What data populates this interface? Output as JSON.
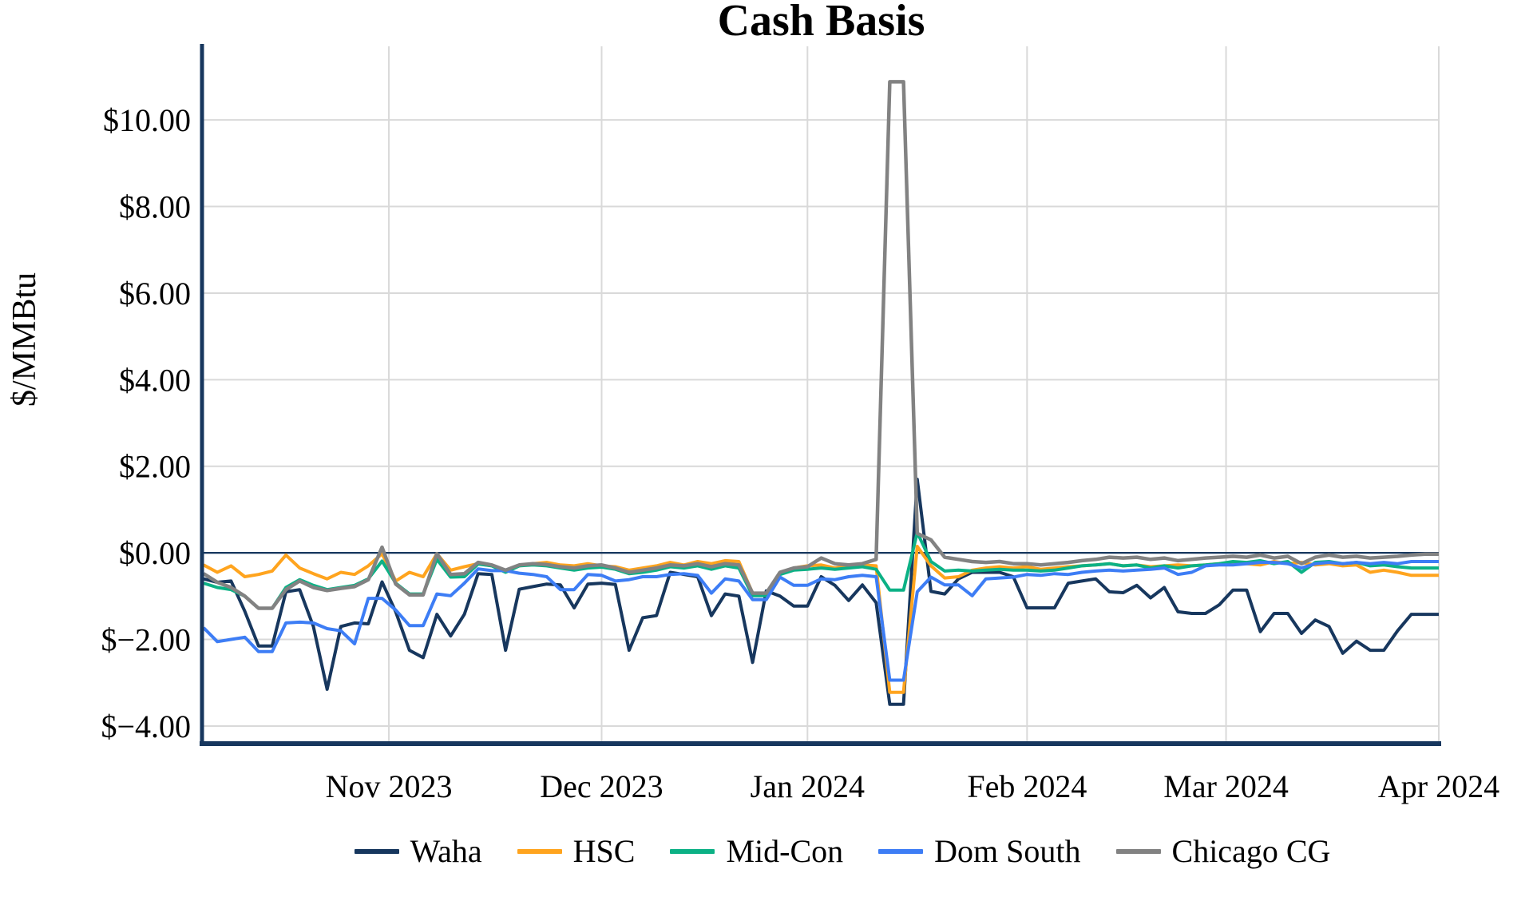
{
  "chart_data": {
    "type": "line",
    "title": "Cash Basis",
    "ylabel": "$/MMBtu",
    "grid": true,
    "legend_position": "bottom",
    "background_color": "#FFFFFF",
    "axis_color": "#17375E",
    "gridline_color": "#D9D9D9",
    "zero_line": {
      "value": 0,
      "color": "#17375E"
    },
    "x_axis": {
      "unit": "days since first point (approx. Oct 5, 2023)",
      "total_days": 180,
      "ticks": [
        {
          "label": "Nov 2023",
          "day": 27
        },
        {
          "label": "Dec 2023",
          "day": 58
        },
        {
          "label": "Jan 2024",
          "day": 88
        },
        {
          "label": "Feb 2024",
          "day": 120
        },
        {
          "label": "Mar 2024",
          "day": 149
        },
        {
          "label": "Apr 2024",
          "day": 180
        }
      ]
    },
    "y_axis": {
      "range": [
        -4.37,
        11.7
      ],
      "ticks": [
        {
          "label": "$10.00",
          "value": 10
        },
        {
          "label": "$8.00",
          "value": 8
        },
        {
          "label": "$6.00",
          "value": 6
        },
        {
          "label": "$4.00",
          "value": 4
        },
        {
          "label": "$2.00",
          "value": 2
        },
        {
          "label": "$0.00",
          "value": 0
        },
        {
          "label": "$−2.00",
          "value": -2
        },
        {
          "label": "$−4.00",
          "value": -4
        }
      ]
    },
    "sample_interval_days": 2,
    "series": [
      {
        "name": "Waha",
        "color": "#17375E",
        "values": [
          -0.6,
          -0.68,
          -0.65,
          -1.35,
          -2.15,
          -2.15,
          -0.9,
          -0.85,
          -1.7,
          -3.15,
          -1.7,
          -1.62,
          -1.64,
          -0.67,
          -1.36,
          -2.25,
          -2.42,
          -1.42,
          -1.92,
          -1.42,
          -0.48,
          -0.5,
          -2.25,
          -0.84,
          -0.78,
          -0.72,
          -0.74,
          -1.27,
          -0.72,
          -0.7,
          -0.73,
          -2.25,
          -1.5,
          -1.45,
          -0.45,
          -0.5,
          -0.55,
          -1.45,
          -0.95,
          -1.0,
          -2.53,
          -0.88,
          -1.0,
          -1.23,
          -1.23,
          -0.55,
          -0.75,
          -1.1,
          -0.74,
          -1.15,
          -3.5,
          -3.5,
          1.7,
          -0.89,
          -0.95,
          -0.6,
          -0.45,
          -0.45,
          -0.45,
          -0.55,
          -1.27,
          -1.27,
          -1.27,
          -0.7,
          -0.65,
          -0.6,
          -0.9,
          -0.92,
          -0.75,
          -1.04,
          -0.8,
          -1.36,
          -1.4,
          -1.4,
          -1.2,
          -0.86,
          -0.86,
          -1.82,
          -1.4,
          -1.4,
          -1.86,
          -1.55,
          -1.7,
          -2.32,
          -2.04,
          -2.25,
          -2.25,
          -1.8,
          -1.42,
          -1.42,
          -1.42
        ]
      },
      {
        "name": "HSC",
        "color": "#FFA41E",
        "values": [
          -0.28,
          -0.45,
          -0.3,
          -0.55,
          -0.5,
          -0.42,
          -0.05,
          -0.35,
          -0.48,
          -0.6,
          -0.45,
          -0.5,
          -0.3,
          -0.02,
          -0.65,
          -0.45,
          -0.55,
          -0.02,
          -0.4,
          -0.32,
          -0.25,
          -0.3,
          -0.42,
          -0.3,
          -0.25,
          -0.22,
          -0.28,
          -0.3,
          -0.25,
          -0.3,
          -0.32,
          -0.4,
          -0.35,
          -0.3,
          -0.22,
          -0.28,
          -0.2,
          -0.25,
          -0.18,
          -0.2,
          -0.93,
          -0.95,
          -0.45,
          -0.35,
          -0.3,
          -0.28,
          -0.35,
          -0.3,
          -0.28,
          -0.3,
          -3.22,
          -3.22,
          0.15,
          -0.3,
          -0.58,
          -0.55,
          -0.4,
          -0.35,
          -0.32,
          -0.35,
          -0.32,
          -0.38,
          -0.35,
          -0.32,
          -0.3,
          -0.28,
          -0.25,
          -0.3,
          -0.28,
          -0.32,
          -0.3,
          -0.28,
          -0.3,
          -0.28,
          -0.25,
          -0.22,
          -0.25,
          -0.28,
          -0.2,
          -0.25,
          -0.22,
          -0.28,
          -0.25,
          -0.3,
          -0.28,
          -0.45,
          -0.4,
          -0.45,
          -0.52,
          -0.52,
          -0.52
        ]
      },
      {
        "name": "Mid-Con",
        "color": "#0CB185",
        "values": [
          -0.7,
          -0.8,
          -0.85,
          -1.0,
          -1.28,
          -1.28,
          -0.8,
          -0.62,
          -0.75,
          -0.85,
          -0.8,
          -0.75,
          -0.6,
          -0.19,
          -0.7,
          -0.95,
          -0.95,
          -0.15,
          -0.56,
          -0.55,
          -0.26,
          -0.3,
          -0.45,
          -0.3,
          -0.28,
          -0.3,
          -0.35,
          -0.4,
          -0.35,
          -0.33,
          -0.38,
          -0.48,
          -0.45,
          -0.4,
          -0.32,
          -0.35,
          -0.3,
          -0.38,
          -0.3,
          -0.35,
          -0.99,
          -0.99,
          -0.5,
          -0.4,
          -0.38,
          -0.35,
          -0.38,
          -0.35,
          -0.32,
          -0.38,
          -0.86,
          -0.86,
          0.47,
          -0.2,
          -0.42,
          -0.4,
          -0.42,
          -0.4,
          -0.38,
          -0.4,
          -0.4,
          -0.42,
          -0.4,
          -0.35,
          -0.3,
          -0.28,
          -0.25,
          -0.3,
          -0.28,
          -0.35,
          -0.3,
          -0.35,
          -0.3,
          -0.28,
          -0.25,
          -0.2,
          -0.22,
          -0.18,
          -0.25,
          -0.2,
          -0.45,
          -0.22,
          -0.2,
          -0.25,
          -0.22,
          -0.3,
          -0.28,
          -0.32,
          -0.35,
          -0.35,
          -0.35
        ]
      },
      {
        "name": "Dom South",
        "color": "#3D7DF5",
        "values": [
          -1.73,
          -2.05,
          -2.0,
          -1.95,
          -2.28,
          -2.28,
          -1.62,
          -1.6,
          -1.62,
          -1.75,
          -1.8,
          -2.1,
          -1.05,
          -1.05,
          -1.32,
          -1.68,
          -1.68,
          -0.95,
          -0.99,
          -0.7,
          -0.37,
          -0.41,
          -0.41,
          -0.47,
          -0.5,
          -0.55,
          -0.85,
          -0.85,
          -0.5,
          -0.52,
          -0.65,
          -0.62,
          -0.55,
          -0.55,
          -0.5,
          -0.48,
          -0.52,
          -0.93,
          -0.6,
          -0.65,
          -1.08,
          -1.08,
          -0.56,
          -0.75,
          -0.75,
          -0.6,
          -0.62,
          -0.55,
          -0.52,
          -0.55,
          -2.94,
          -2.94,
          -0.9,
          -0.56,
          -0.74,
          -0.74,
          -0.99,
          -0.6,
          -0.58,
          -0.56,
          -0.5,
          -0.52,
          -0.48,
          -0.5,
          -0.45,
          -0.42,
          -0.4,
          -0.42,
          -0.4,
          -0.38,
          -0.35,
          -0.5,
          -0.45,
          -0.3,
          -0.28,
          -0.28,
          -0.25,
          -0.22,
          -0.22,
          -0.25,
          -0.35,
          -0.25,
          -0.22,
          -0.25,
          -0.22,
          -0.25,
          -0.22,
          -0.25,
          -0.2,
          -0.2,
          -0.2
        ]
      },
      {
        "name": "Chicago CG",
        "color": "#828282",
        "values": [
          -0.48,
          -0.68,
          -0.8,
          -1.0,
          -1.28,
          -1.28,
          -0.85,
          -0.65,
          -0.8,
          -0.87,
          -0.82,
          -0.78,
          -0.62,
          0.13,
          -0.72,
          -0.97,
          -0.97,
          -0.02,
          -0.5,
          -0.48,
          -0.22,
          -0.28,
          -0.4,
          -0.28,
          -0.25,
          -0.27,
          -0.32,
          -0.35,
          -0.3,
          -0.28,
          -0.35,
          -0.45,
          -0.4,
          -0.35,
          -0.28,
          -0.3,
          -0.25,
          -0.32,
          -0.25,
          -0.28,
          -0.93,
          -0.93,
          -0.45,
          -0.35,
          -0.32,
          -0.12,
          -0.25,
          -0.28,
          -0.25,
          -0.15,
          10.88,
          10.88,
          0.45,
          0.3,
          -0.1,
          -0.15,
          -0.2,
          -0.22,
          -0.2,
          -0.25,
          -0.25,
          -0.28,
          -0.25,
          -0.22,
          -0.18,
          -0.15,
          -0.1,
          -0.12,
          -0.1,
          -0.15,
          -0.12,
          -0.18,
          -0.15,
          -0.12,
          -0.1,
          -0.08,
          -0.1,
          -0.05,
          -0.12,
          -0.08,
          -0.25,
          -0.1,
          -0.05,
          -0.1,
          -0.08,
          -0.12,
          -0.1,
          -0.08,
          -0.05,
          -0.03,
          -0.03
        ]
      }
    ]
  }
}
